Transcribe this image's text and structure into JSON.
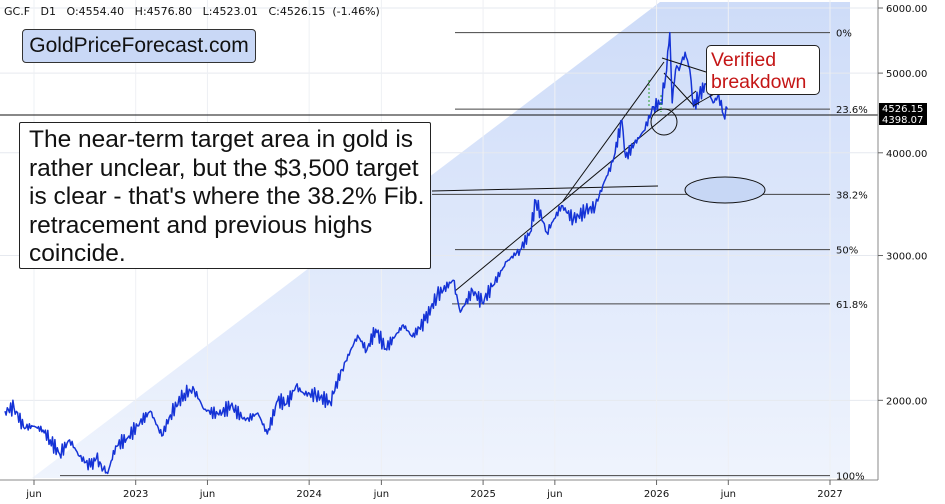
{
  "header": {
    "symbol": "GC.F",
    "timeframe": "D1",
    "open": "O:4554.40",
    "high": "H:4576.80",
    "low": "L:4523.01",
    "close": "C:4526.15",
    "change": "(-1.46%)"
  },
  "brand": "GoldPriceForecast.com",
  "note": "The near-term target area in gold is rather unclear, but the $3,500 target is clear - that's where the 38.2% Fib. retracement and previous highs coincide.",
  "callout": {
    "line1": "Verified",
    "line2": "breakdown"
  },
  "colors": {
    "price": "#1533d6",
    "fib_shade": "#dbe6fb",
    "fib_line": "#444444",
    "callout_text": "#c41616",
    "brand_bg": "#c9d8f6",
    "last_price_badge": "#000000"
  },
  "chart_data": {
    "type": "line",
    "scale": "log",
    "ylim": [
      1600,
      6000
    ],
    "y_ticks": [
      {
        "value": 2000,
        "label": "2000.00"
      },
      {
        "value": 3000,
        "label": "3000.00"
      },
      {
        "value": 4000,
        "label": "4000.00"
      },
      {
        "value": 5000,
        "label": "5000.00"
      },
      {
        "value": 6000,
        "label": "6000.00"
      }
    ],
    "x_ticks": [
      {
        "date": "2022-06-01",
        "label": "jun"
      },
      {
        "date": "2023-01-01",
        "label": "2023"
      },
      {
        "date": "2023-06-01",
        "label": "jun"
      },
      {
        "date": "2024-01-01",
        "label": "2024"
      },
      {
        "date": "2024-06-01",
        "label": "jun"
      },
      {
        "date": "2025-01-01",
        "label": "2025"
      },
      {
        "date": "2025-06-01",
        "label": "jun"
      },
      {
        "date": "2026-01-01",
        "label": "2026"
      },
      {
        "date": "2026-06-01",
        "label": "jun"
      },
      {
        "date": "2027-01-01",
        "label": "2027"
      }
    ],
    "price_labels": [
      {
        "value": 4526.15,
        "label": "4526.15"
      },
      {
        "value": 4398.07,
        "label": "4398.07"
      }
    ],
    "fib_levels": [
      {
        "label": "0%",
        "value": 5600
      },
      {
        "label": "23.6%",
        "value": 4520
      },
      {
        "label": "38.2%",
        "value": 3560
      },
      {
        "label": "50%",
        "value": 3050
      },
      {
        "label": "61.8%",
        "value": 2620
      },
      {
        "label": "100%",
        "value": 1620
      }
    ],
    "series": [
      {
        "values": [
          {
            "x": "2022-04-01",
            "y": 1940
          },
          {
            "x": "2022-04-20",
            "y": 1960
          },
          {
            "x": "2022-05-10",
            "y": 1855
          },
          {
            "x": "2022-06-01",
            "y": 1860
          },
          {
            "x": "2022-06-20",
            "y": 1840
          },
          {
            "x": "2022-07-05",
            "y": 1790
          },
          {
            "x": "2022-07-25",
            "y": 1720
          },
          {
            "x": "2022-08-15",
            "y": 1790
          },
          {
            "x": "2022-09-05",
            "y": 1710
          },
          {
            "x": "2022-09-28",
            "y": 1660
          },
          {
            "x": "2022-10-10",
            "y": 1700
          },
          {
            "x": "2022-10-25",
            "y": 1650
          },
          {
            "x": "2022-11-03",
            "y": 1630
          },
          {
            "x": "2022-11-20",
            "y": 1760
          },
          {
            "x": "2022-12-15",
            "y": 1800
          },
          {
            "x": "2023-01-10",
            "y": 1880
          },
          {
            "x": "2023-02-01",
            "y": 1940
          },
          {
            "x": "2023-02-25",
            "y": 1810
          },
          {
            "x": "2023-03-15",
            "y": 1920
          },
          {
            "x": "2023-04-13",
            "y": 2040
          },
          {
            "x": "2023-05-04",
            "y": 2060
          },
          {
            "x": "2023-05-25",
            "y": 1950
          },
          {
            "x": "2023-06-25",
            "y": 1920
          },
          {
            "x": "2023-07-20",
            "y": 1970
          },
          {
            "x": "2023-08-20",
            "y": 1890
          },
          {
            "x": "2023-09-15",
            "y": 1930
          },
          {
            "x": "2023-10-05",
            "y": 1820
          },
          {
            "x": "2023-10-27",
            "y": 2000
          },
          {
            "x": "2023-11-15",
            "y": 1980
          },
          {
            "x": "2023-12-04",
            "y": 2080
          },
          {
            "x": "2023-12-20",
            "y": 2040
          },
          {
            "x": "2024-01-15",
            "y": 2030
          },
          {
            "x": "2024-02-14",
            "y": 1990
          },
          {
            "x": "2024-03-10",
            "y": 2180
          },
          {
            "x": "2024-04-12",
            "y": 2400
          },
          {
            "x": "2024-05-01",
            "y": 2300
          },
          {
            "x": "2024-05-20",
            "y": 2440
          },
          {
            "x": "2024-06-10",
            "y": 2310
          },
          {
            "x": "2024-07-17",
            "y": 2470
          },
          {
            "x": "2024-08-05",
            "y": 2390
          },
          {
            "x": "2024-09-01",
            "y": 2500
          },
          {
            "x": "2024-09-26",
            "y": 2680
          },
          {
            "x": "2024-10-30",
            "y": 2800
          },
          {
            "x": "2024-11-14",
            "y": 2560
          },
          {
            "x": "2024-12-10",
            "y": 2720
          },
          {
            "x": "2024-12-30",
            "y": 2630
          },
          {
            "x": "2025-01-20",
            "y": 2750
          },
          {
            "x": "2025-02-20",
            "y": 2950
          },
          {
            "x": "2025-03-20",
            "y": 3050
          },
          {
            "x": "2025-04-10",
            "y": 3200
          },
          {
            "x": "2025-04-22",
            "y": 3500
          },
          {
            "x": "2025-05-15",
            "y": 3200
          },
          {
            "x": "2025-06-15",
            "y": 3450
          },
          {
            "x": "2025-07-10",
            "y": 3320
          },
          {
            "x": "2025-08-05",
            "y": 3400
          },
          {
            "x": "2025-08-25",
            "y": 3440
          },
          {
            "x": "2025-09-10",
            "y": 3650
          },
          {
            "x": "2025-10-01",
            "y": 3900
          },
          {
            "x": "2025-10-20",
            "y": 4380
          },
          {
            "x": "2025-10-28",
            "y": 3950
          },
          {
            "x": "2025-11-15",
            "y": 4100
          },
          {
            "x": "2025-12-05",
            "y": 4250
          },
          {
            "x": "2025-12-26",
            "y": 4550
          },
          {
            "x": "2026-01-10",
            "y": 4600
          },
          {
            "x": "2026-01-20",
            "y": 4950
          },
          {
            "x": "2026-01-29",
            "y": 5600
          },
          {
            "x": "2026-02-03",
            "y": 4600
          },
          {
            "x": "2026-02-10",
            "y": 5050
          },
          {
            "x": "2026-02-20",
            "y": 5100
          },
          {
            "x": "2026-03-02",
            "y": 5300
          },
          {
            "x": "2026-03-12",
            "y": 5050
          },
          {
            "x": "2026-03-20",
            "y": 4550
          },
          {
            "x": "2026-04-01",
            "y": 4700
          },
          {
            "x": "2026-04-15",
            "y": 4850
          },
          {
            "x": "2026-04-30",
            "y": 4600
          },
          {
            "x": "2026-05-12",
            "y": 4700
          },
          {
            "x": "2026-05-22",
            "y": 4450
          },
          {
            "x": "2026-05-30",
            "y": 4526
          }
        ]
      }
    ]
  }
}
